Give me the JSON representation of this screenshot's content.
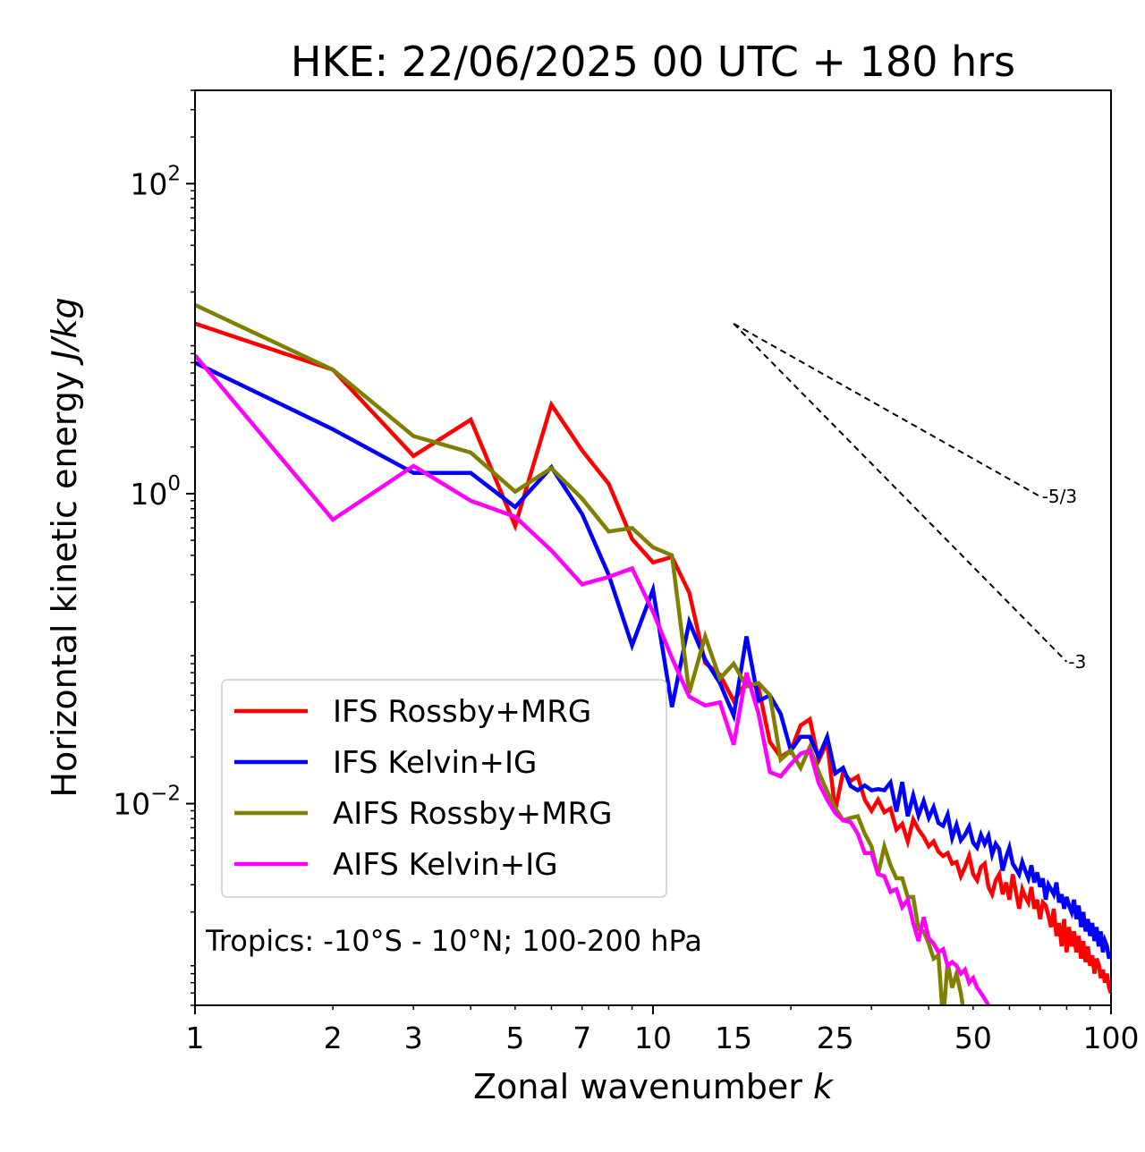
{
  "chart_data": {
    "type": "line",
    "title": "HKE: 22/06/2025 00 UTC + 180 hrs",
    "xlabel_text": "Zonal wavenumber",
    "xlabel_var": "k",
    "ylabel_text": "Horizontal kinetic energy",
    "ylabel_unit": "J/kg",
    "xscale": "log",
    "yscale": "log",
    "xlim": [
      1,
      100
    ],
    "ylim": [
      0.0005,
      400
    ],
    "xticks": [
      {
        "v": 1,
        "label": "1"
      },
      {
        "v": 2,
        "label": "2"
      },
      {
        "v": 3,
        "label": "3"
      },
      {
        "v": 5,
        "label": "5"
      },
      {
        "v": 7,
        "label": "7"
      },
      {
        "v": 10,
        "label": "10"
      },
      {
        "v": 15,
        "label": "15"
      },
      {
        "v": 25,
        "label": "25"
      },
      {
        "v": 50,
        "label": "50"
      },
      {
        "v": 100,
        "label": "100"
      }
    ],
    "yticks": [
      {
        "v": 100,
        "base": "10",
        "exp": "2"
      },
      {
        "v": 1,
        "base": "10",
        "exp": "0"
      },
      {
        "v": 0.01,
        "base": "10",
        "exp": "−2"
      }
    ],
    "annotation": "Tropics: -10°S - 10°N; 100-200 hPa",
    "legend_position": "lower-left",
    "grid": false,
    "reference_slopes": [
      {
        "label": "-5/3",
        "slope": -1.6667,
        "x": [
          15,
          70
        ],
        "y0": 12.5
      },
      {
        "label": "-3",
        "slope": -3,
        "x": [
          15,
          80
        ],
        "y0": 12.5
      }
    ],
    "series": [
      {
        "name": "IFS Rossby+MRG",
        "color": "#ff0000",
        "x": [
          1,
          2,
          3,
          4,
          5,
          6,
          7,
          8,
          9,
          10,
          11,
          12,
          13,
          14,
          15,
          16,
          17,
          18,
          19,
          20,
          21,
          22,
          23,
          24,
          25,
          26,
          27,
          28,
          29,
          30,
          31,
          32,
          33,
          34,
          35,
          36,
          37,
          38,
          39,
          40,
          41,
          42,
          43,
          44,
          45,
          46,
          47,
          48,
          49,
          50,
          51,
          52,
          53,
          54,
          55,
          56,
          57,
          58,
          59,
          60,
          61,
          62,
          63,
          64,
          65,
          66,
          67,
          68,
          69,
          70,
          71,
          72,
          73,
          74,
          75,
          76,
          77,
          78,
          79,
          80,
          81,
          82,
          83,
          84,
          85,
          86,
          87,
          88,
          89,
          90,
          91,
          92,
          93,
          94,
          95,
          96,
          97,
          98,
          99,
          100
        ],
        "y": [
          12.5,
          6.3,
          1.75,
          3.0,
          0.62,
          3.75,
          1.9,
          1.16,
          0.51,
          0.36,
          0.39,
          0.23,
          0.081,
          0.068,
          0.046,
          0.061,
          0.056,
          0.025,
          0.02,
          0.022,
          0.032,
          0.035,
          0.019,
          0.025,
          0.009,
          0.016,
          0.014,
          0.015,
          0.0106,
          0.009,
          0.0106,
          0.0088,
          0.0093,
          0.0068,
          0.0074,
          0.0057,
          0.0079,
          0.0068,
          0.0061,
          0.0053,
          0.0057,
          0.0049,
          0.0046,
          0.0048,
          0.0041,
          0.0042,
          0.0034,
          0.0039,
          0.0046,
          0.0035,
          0.0032,
          0.0039,
          0.0041,
          0.0029,
          0.0026,
          0.0032,
          0.0035,
          0.0026,
          0.0031,
          0.0024,
          0.0035,
          0.0027,
          0.0021,
          0.0028,
          0.0025,
          0.0023,
          0.0029,
          0.0021,
          0.0024,
          0.0018,
          0.0023,
          0.0022,
          0.0019,
          0.0016,
          0.0021,
          0.0014,
          0.0017,
          0.0012,
          0.0018,
          0.0011,
          0.0016,
          0.0012,
          0.0015,
          0.0011,
          0.0014,
          0.001,
          0.0013,
          0.00095,
          0.0012,
          0.0009,
          0.00105,
          0.0008,
          0.001,
          0.00092,
          0.00075,
          0.00085,
          0.0007,
          0.0008,
          0.00065,
          0.0006
        ]
      },
      {
        "name": "IFS Kelvin+IG",
        "color": "#0000ff",
        "x": [
          1,
          2,
          3,
          4,
          5,
          6,
          7,
          8,
          9,
          10,
          11,
          12,
          13,
          14,
          15,
          16,
          17,
          18,
          19,
          20,
          21,
          22,
          23,
          24,
          25,
          26,
          27,
          28,
          29,
          30,
          31,
          32,
          33,
          34,
          35,
          36,
          37,
          38,
          39,
          40,
          41,
          42,
          43,
          44,
          45,
          46,
          47,
          48,
          49,
          50,
          51,
          52,
          53,
          54,
          55,
          56,
          57,
          58,
          59,
          60,
          61,
          62,
          63,
          64,
          65,
          66,
          67,
          68,
          69,
          70,
          71,
          72,
          73,
          74,
          75,
          76,
          77,
          78,
          79,
          80,
          81,
          82,
          83,
          84,
          85,
          86,
          87,
          88,
          89,
          90,
          91,
          92,
          93,
          94,
          95,
          96,
          97,
          98,
          99,
          100
        ],
        "y": [
          7.0,
          2.6,
          1.36,
          1.36,
          0.82,
          1.48,
          0.74,
          0.3,
          0.105,
          0.24,
          0.042,
          0.149,
          0.085,
          0.06,
          0.037,
          0.12,
          0.046,
          0.05,
          0.038,
          0.022,
          0.027,
          0.027,
          0.02,
          0.027,
          0.0157,
          0.017,
          0.013,
          0.0122,
          0.0131,
          0.0122,
          0.0124,
          0.0122,
          0.0137,
          0.0089,
          0.0138,
          0.0083,
          0.0113,
          0.0084,
          0.0104,
          0.0081,
          0.0095,
          0.0075,
          0.0072,
          0.0085,
          0.006,
          0.0073,
          0.0058,
          0.0063,
          0.0071,
          0.0056,
          0.0052,
          0.0063,
          0.0055,
          0.0062,
          0.0047,
          0.0055,
          0.0051,
          0.0037,
          0.0045,
          0.0052,
          0.0041,
          0.0038,
          0.0035,
          0.0042,
          0.0037,
          0.0033,
          0.004,
          0.0031,
          0.0036,
          0.0029,
          0.0033,
          0.0024,
          0.003,
          0.0028,
          0.0026,
          0.0031,
          0.0023,
          0.0026,
          0.0021,
          0.0025,
          0.0022,
          0.002,
          0.0024,
          0.0018,
          0.0022,
          0.0016,
          0.002,
          0.0015,
          0.0018,
          0.0014,
          0.0017,
          0.0013,
          0.0016,
          0.0012,
          0.0015,
          0.0011,
          0.0013,
          0.0012,
          0.001,
          0.0011
        ]
      },
      {
        "name": "AIFS Rossby+MRG",
        "color": "#808000",
        "x": [
          1,
          2,
          3,
          4,
          5,
          6,
          7,
          8,
          9,
          10,
          11,
          12,
          13,
          14,
          15,
          16,
          17,
          18,
          19,
          20,
          21,
          22,
          23,
          24,
          25,
          26,
          27,
          28,
          29,
          30,
          31,
          32,
          33,
          34,
          35,
          36,
          37,
          38,
          39,
          40,
          41,
          42,
          43,
          44,
          45,
          46,
          47,
          48
        ],
        "y": [
          16.5,
          6.3,
          2.35,
          1.84,
          1.03,
          1.46,
          0.93,
          0.57,
          0.6,
          0.45,
          0.4,
          0.052,
          0.12,
          0.064,
          0.08,
          0.057,
          0.06,
          0.05,
          0.0192,
          0.022,
          0.017,
          0.0232,
          0.016,
          0.012,
          0.0094,
          0.0078,
          0.0081,
          0.0083,
          0.0064,
          0.0053,
          0.0035,
          0.0053,
          0.004,
          0.0033,
          0.0033,
          0.0025,
          0.0025,
          0.00155,
          0.0015,
          0.00125,
          0.001,
          0.00105,
          0.0004,
          0.00095,
          0.00065,
          0.0008,
          0.0006,
          0.0004
        ]
      },
      {
        "name": "AIFS Kelvin+IG",
        "color": "#ff00ff",
        "x": [
          1,
          2,
          3,
          4,
          5,
          6,
          7,
          8,
          9,
          10,
          11,
          12,
          13,
          14,
          15,
          16,
          17,
          18,
          19,
          20,
          21,
          22,
          23,
          24,
          25,
          26,
          27,
          28,
          29,
          30,
          31,
          32,
          33,
          34,
          35,
          36,
          37,
          38,
          39,
          40,
          41,
          42,
          43,
          44,
          45,
          46,
          47,
          48,
          49,
          50,
          51,
          52,
          53,
          54
        ],
        "y": [
          7.8,
          0.68,
          1.51,
          0.9,
          0.71,
          0.43,
          0.26,
          0.29,
          0.33,
          0.173,
          0.087,
          0.049,
          0.043,
          0.045,
          0.024,
          0.07,
          0.038,
          0.016,
          0.015,
          0.018,
          0.021,
          0.022,
          0.0136,
          0.0106,
          0.0087,
          0.0078,
          0.0076,
          0.0064,
          0.0048,
          0.0048,
          0.0035,
          0.0034,
          0.0027,
          0.0028,
          0.00215,
          0.0024,
          0.0017,
          0.0013,
          0.00185,
          0.00135,
          0.00125,
          0.0011,
          0.00115,
          0.0009,
          0.00095,
          0.0009,
          0.0008,
          0.00085,
          0.0007,
          0.00075,
          0.00065,
          0.0006,
          0.00055,
          0.0005
        ]
      }
    ]
  }
}
